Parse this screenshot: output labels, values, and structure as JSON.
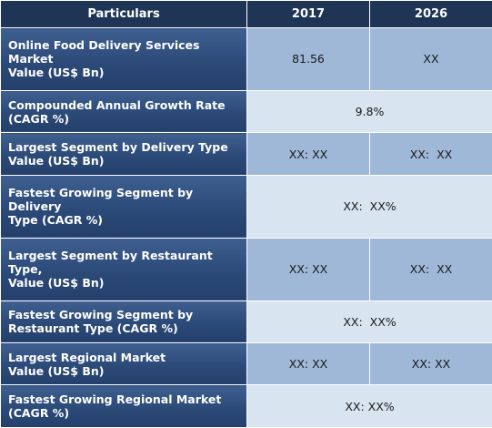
{
  "header": {
    "particulars": "Particulars",
    "year1": "2017",
    "year2": "2026"
  },
  "rows": [
    {
      "label_line1": "Online Food Delivery Services Market",
      "label_line2": "Value (US$ Bn)",
      "v2017": "81.56",
      "v2026": "XX"
    },
    {
      "label_line1": "Compounded Annual Growth Rate",
      "label_line2": "(CAGR %)",
      "value": "9.8%"
    },
    {
      "label_line1": "Largest Segment by Delivery Type",
      "label_line2": "Value (US$ Bn)",
      "v2017": "XX: XX",
      "v2026": "XX:  XX"
    },
    {
      "label_line1": "Fastest Growing Segment by Delivery",
      "label_line2": "Type (CAGR %)",
      "value": "XX:  XX%"
    },
    {
      "label_line1": "Largest Segment by Restaurant Type,",
      "label_line2": "Value (US$ Bn)",
      "v2017": "XX: XX",
      "v2026": "XX:  XX"
    },
    {
      "label_line1": "Fastest Growing Segment by",
      "label_line2": "Restaurant Type (CAGR %)",
      "value": "XX:  XX%"
    },
    {
      "label_line1": "Largest Regional Market",
      "label_line2": "Value (US$ Bn)",
      "v2017": "XX: XX",
      "v2026": "XX: XX"
    },
    {
      "label_line1": "Fastest Growing Regional Market",
      "label_line2": "(CAGR %)",
      "value": "XX: XX%"
    }
  ]
}
